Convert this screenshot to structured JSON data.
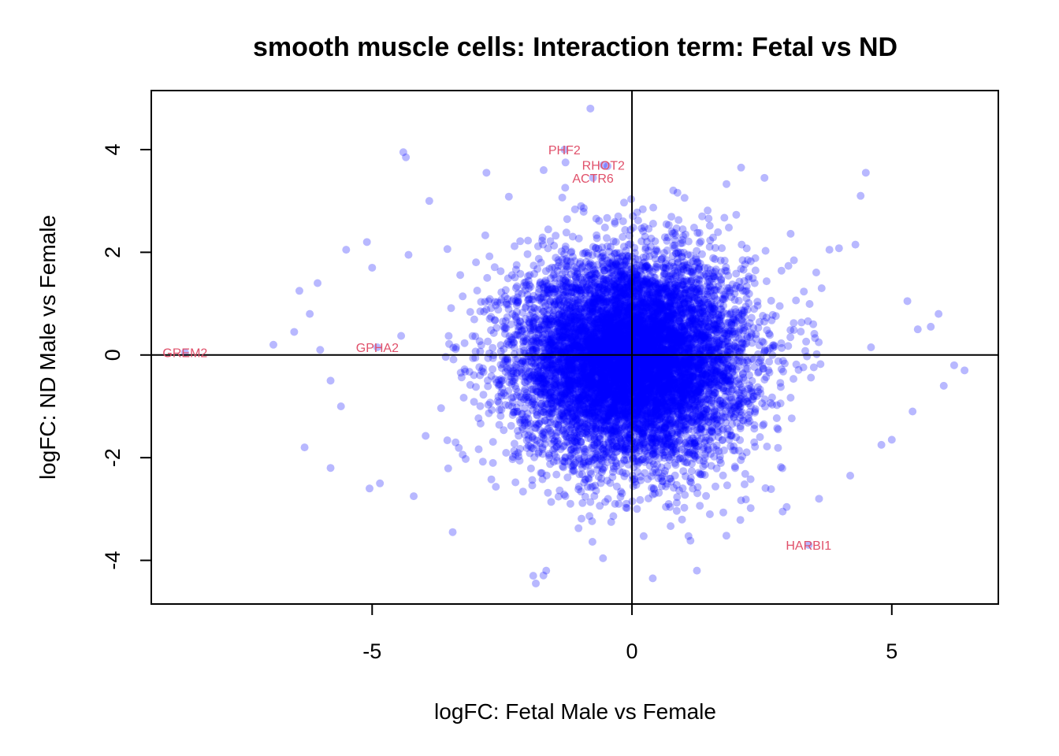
{
  "chart_data": {
    "type": "scatter",
    "title": "smooth muscle cells: Interaction term: Fetal vs ND",
    "xlabel": "logFC: Fetal Male vs Female",
    "ylabel": "logFC: ND Male vs Female",
    "xlim": [
      -9.25,
      7.05
    ],
    "ylim": [
      -4.85,
      5.15
    ],
    "xticks": [
      -5,
      0,
      5
    ],
    "yticks": [
      -4,
      -2,
      0,
      2,
      4
    ],
    "xtick_labels": [
      "-5",
      "0",
      "5"
    ],
    "ytick_labels": [
      "-4",
      "-2",
      "0",
      "2",
      "4"
    ],
    "reference_lines": {
      "x": 0,
      "y": 0
    },
    "point_color": "#0000ff",
    "point_opacity": 0.28,
    "label_color": "#e0506a",
    "cloud": {
      "n": 9000,
      "center": [
        0.0,
        -0.1
      ],
      "sd": [
        1.1,
        1.0
      ]
    },
    "labeled_points": [
      {
        "gene": "PHF2",
        "x": -1.3,
        "y": 4.0
      },
      {
        "gene": "RHOT2",
        "x": -0.55,
        "y": 3.7
      },
      {
        "gene": "ACTR6",
        "x": -0.75,
        "y": 3.45
      },
      {
        "gene": "GREM2",
        "x": -8.6,
        "y": 0.05
      },
      {
        "gene": "GPHA2",
        "x": -4.9,
        "y": 0.15
      },
      {
        "gene": "HARBI1",
        "x": 3.4,
        "y": -3.7
      }
    ],
    "outlier_points": [
      {
        "x": -0.8,
        "y": 4.8
      },
      {
        "x": -4.4,
        "y": 3.95
      },
      {
        "x": -4.35,
        "y": 3.85
      },
      {
        "x": -1.7,
        "y": 3.6
      },
      {
        "x": -2.8,
        "y": 3.55
      },
      {
        "x": 2.1,
        "y": 3.65
      },
      {
        "x": 2.55,
        "y": 3.45
      },
      {
        "x": 4.5,
        "y": 3.55
      },
      {
        "x": 4.4,
        "y": 3.1
      },
      {
        "x": -3.9,
        "y": 3.0
      },
      {
        "x": -5.1,
        "y": 2.2
      },
      {
        "x": -5.5,
        "y": 2.05
      },
      {
        "x": -4.3,
        "y": 1.95
      },
      {
        "x": -5.0,
        "y": 1.7
      },
      {
        "x": -6.4,
        "y": 1.25
      },
      {
        "x": -6.05,
        "y": 1.4
      },
      {
        "x": -6.2,
        "y": 0.8
      },
      {
        "x": -6.5,
        "y": 0.45
      },
      {
        "x": -6.9,
        "y": 0.2
      },
      {
        "x": -6.0,
        "y": 0.1
      },
      {
        "x": -5.8,
        "y": -0.5
      },
      {
        "x": -5.6,
        "y": -1.0
      },
      {
        "x": -6.3,
        "y": -1.8
      },
      {
        "x": -5.8,
        "y": -2.2
      },
      {
        "x": -5.05,
        "y": -2.6
      },
      {
        "x": -4.85,
        "y": -2.5
      },
      {
        "x": -4.2,
        "y": -2.75
      },
      {
        "x": -3.45,
        "y": -3.45
      },
      {
        "x": -1.9,
        "y": -4.3
      },
      {
        "x": -1.85,
        "y": -4.45
      },
      {
        "x": -1.65,
        "y": -4.2
      },
      {
        "x": 0.4,
        "y": -4.35
      },
      {
        "x": 1.25,
        "y": -4.2
      },
      {
        "x": 2.9,
        "y": -3.05
      },
      {
        "x": 3.6,
        "y": -2.8
      },
      {
        "x": 4.2,
        "y": -2.35
      },
      {
        "x": 4.8,
        "y": -1.75
      },
      {
        "x": 5.0,
        "y": -1.65
      },
      {
        "x": 5.4,
        "y": -1.1
      },
      {
        "x": 6.0,
        "y": -0.6
      },
      {
        "x": 6.2,
        "y": -0.2
      },
      {
        "x": 6.4,
        "y": -0.3
      },
      {
        "x": 5.9,
        "y": 0.8
      },
      {
        "x": 5.3,
        "y": 1.05
      },
      {
        "x": 5.5,
        "y": 0.5
      },
      {
        "x": 5.75,
        "y": 0.55
      },
      {
        "x": 4.6,
        "y": 0.15
      },
      {
        "x": 4.3,
        "y": 2.15
      },
      {
        "x": 3.8,
        "y": 2.05
      },
      {
        "x": 3.65,
        "y": 1.3
      }
    ]
  }
}
